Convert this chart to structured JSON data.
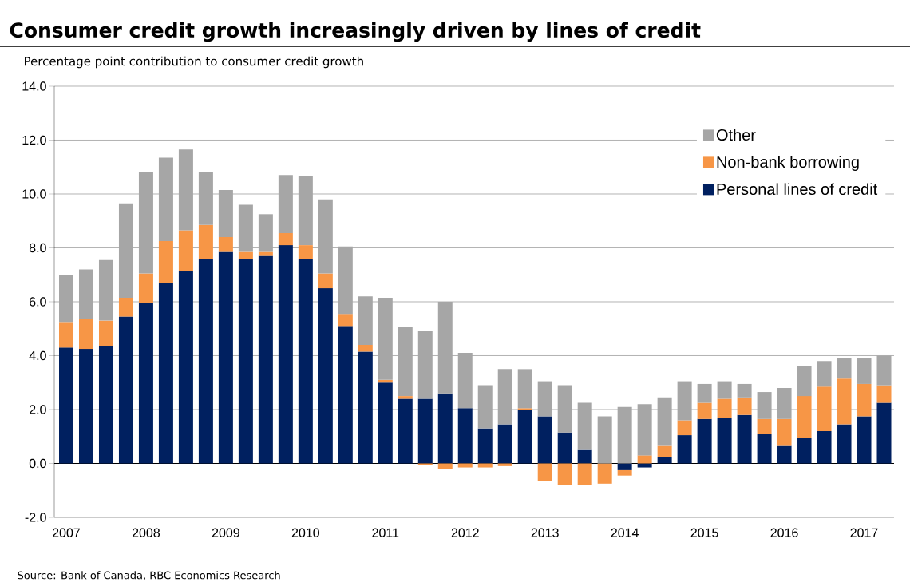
{
  "chart_data": {
    "type": "bar",
    "title": "Consumer credit growth increasingly driven by lines of credit",
    "ylabel": "Percentage point contribution to consumer credit growth",
    "annotations": [
      "Source: Bank of Canada, RBC Economics Research"
    ],
    "categories": [
      "2007",
      null,
      null,
      null,
      "2008",
      null,
      null,
      null,
      "2009",
      null,
      null,
      null,
      "2010",
      null,
      null,
      null,
      "2011",
      null,
      null,
      null,
      "2012",
      null,
      null,
      null,
      "2013",
      null,
      null,
      null,
      "2014",
      null,
      null,
      null,
      "2015",
      null,
      null,
      null,
      "2016",
      null,
      null,
      null,
      "2017",
      null
    ],
    "stacked": true,
    "series": [
      {
        "name": "Personal lines of credit",
        "color": "#002060",
        "values": [
          4.3,
          4.25,
          4.35,
          5.45,
          5.95,
          6.7,
          7.15,
          7.6,
          7.85,
          7.6,
          7.7,
          8.1,
          7.6,
          6.5,
          5.1,
          4.15,
          3.0,
          2.4,
          2.4,
          2.6,
          2.05,
          1.3,
          1.45,
          2.0,
          1.75,
          1.15,
          0.5,
          0.0,
          -0.25,
          -0.15,
          0.25,
          1.05,
          1.65,
          1.7,
          1.8,
          1.1,
          0.65,
          0.95,
          1.2,
          1.45,
          1.75,
          2.25
        ]
      },
      {
        "name": "Non-bank borrowing",
        "color": "#f79646",
        "values": [
          0.95,
          1.1,
          0.95,
          0.7,
          1.1,
          1.55,
          1.5,
          1.25,
          0.55,
          0.25,
          0.15,
          0.45,
          0.5,
          0.55,
          0.45,
          0.25,
          0.1,
          0.1,
          -0.05,
          -0.2,
          -0.15,
          -0.15,
          -0.1,
          0.05,
          -0.65,
          -0.8,
          -0.8,
          -0.75,
          -0.2,
          0.3,
          0.4,
          0.55,
          0.6,
          0.7,
          0.65,
          0.55,
          1.0,
          1.55,
          1.65,
          1.7,
          1.2,
          0.65
        ]
      },
      {
        "name": "Other",
        "color": "#a6a6a6",
        "values": [
          1.75,
          1.85,
          2.25,
          3.5,
          3.75,
          3.1,
          3.0,
          1.95,
          1.75,
          1.75,
          1.4,
          2.15,
          2.55,
          2.75,
          2.5,
          1.8,
          3.05,
          2.55,
          2.5,
          3.4,
          2.05,
          1.6,
          2.05,
          1.45,
          1.3,
          1.75,
          1.75,
          1.75,
          2.1,
          1.9,
          1.8,
          1.45,
          0.7,
          0.65,
          0.5,
          1.0,
          1.15,
          1.1,
          0.95,
          0.75,
          0.95,
          1.1
        ]
      }
    ],
    "ylim": [
      -2,
      14
    ],
    "yticks": [
      {
        "value": -2,
        "label": "-2.0"
      },
      {
        "value": 0,
        "label": "0.0"
      },
      {
        "value": 2,
        "label": "2.0"
      },
      {
        "value": 4,
        "label": "4.0"
      },
      {
        "value": 6,
        "label": "6.0"
      },
      {
        "value": 8,
        "label": "8.0"
      },
      {
        "value": 10,
        "label": "10.0"
      },
      {
        "value": 12,
        "label": "12.0"
      },
      {
        "value": 14,
        "label": "14.0"
      }
    ],
    "grid": "y",
    "legend": "top right"
  }
}
